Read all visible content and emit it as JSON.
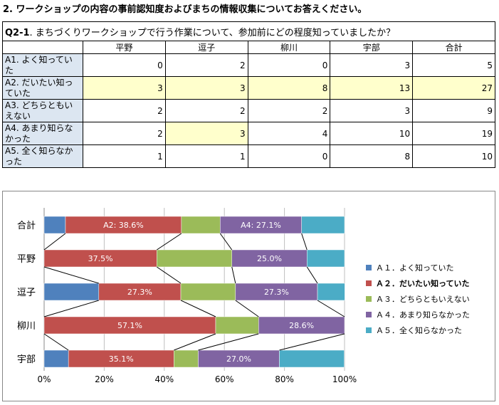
{
  "heading": "2. ワークショップの内容の事前認知度およびまちの情報収集についてお答えください。",
  "question": {
    "number": "Q2-1",
    "text": ". まちづくりワークショップで行う作業について、参加前にどの程度知っていましたか？"
  },
  "table": {
    "columns": [
      "平野",
      "逗子",
      "柳川",
      "宇部",
      "合計"
    ],
    "rows": [
      {
        "label": "A1. よく知っていた",
        "values": [
          0,
          2,
          0,
          3,
          5
        ]
      },
      {
        "label": "A2. だいたい知っていた",
        "values": [
          3,
          3,
          8,
          13,
          27
        ]
      },
      {
        "label": "A3. どちらともいえない",
        "values": [
          2,
          2,
          2,
          3,
          9
        ]
      },
      {
        "label": "A4. あまり知らなかった",
        "values": [
          2,
          3,
          4,
          10,
          19
        ]
      },
      {
        "label": "A5. 全く知らなかった",
        "values": [
          1,
          1,
          0,
          8,
          10
        ]
      }
    ],
    "highlight_color": "#ffffcc",
    "label_bg": "#dce6f1"
  },
  "chart_data": {
    "type": "bar",
    "stacked": "percent",
    "orientation": "horizontal",
    "categories": [
      "合計",
      "平野",
      "逗子",
      "柳川",
      "宇部"
    ],
    "series": [
      {
        "name": "Ａ１．よく知っていた",
        "color": "#4f81bd",
        "values": [
          7.1,
          0,
          18.2,
          0,
          8.1
        ]
      },
      {
        "name": "Ａ２．だいたい知っていた",
        "color": "#c0504d",
        "values": [
          38.6,
          37.5,
          27.3,
          57.1,
          35.1
        ]
      },
      {
        "name": "Ａ３．どちらともいえない",
        "color": "#9bbb59",
        "values": [
          12.9,
          25.0,
          18.2,
          14.3,
          8.1
        ]
      },
      {
        "name": "Ａ４．あまり知らなかった",
        "color": "#8064a2",
        "values": [
          27.1,
          25.0,
          27.3,
          28.6,
          27.0
        ]
      },
      {
        "name": "Ａ５．全く知らなかった",
        "color": "#4bacc6",
        "values": [
          14.3,
          12.5,
          9.1,
          0,
          21.6
        ]
      }
    ],
    "bar_labels": [
      [
        null,
        "A2: 38.6%",
        null,
        "A4: 27.1%",
        null
      ],
      [
        null,
        "37.5%",
        null,
        "25.0%",
        null
      ],
      [
        null,
        "27.3%",
        null,
        "27.3%",
        null
      ],
      [
        null,
        "57.1%",
        null,
        "28.6%",
        null
      ],
      [
        null,
        "35.1%",
        null,
        "27.0%",
        null
      ]
    ],
    "xticks": [
      "0%",
      "20%",
      "40%",
      "60%",
      "80%",
      "100%"
    ],
    "xlim": [
      0,
      100
    ],
    "grid": true,
    "series_lines": true,
    "legend_position": "right",
    "legend_bold_index": 1
  }
}
